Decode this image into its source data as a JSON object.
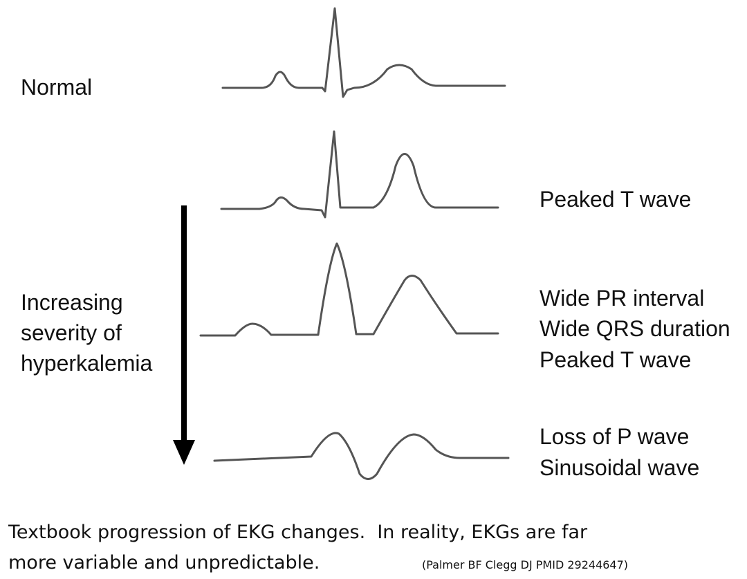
{
  "labels": {
    "normal": "Normal",
    "severity": [
      "Increasing",
      "severity of",
      "hyperkalemia"
    ]
  },
  "stages": [
    {
      "lines": [
        "Peaked T wave"
      ]
    },
    {
      "lines": [
        "Wide PR interval",
        "Wide QRS duration",
        "Peaked T wave"
      ]
    },
    {
      "lines": [
        "Loss of P wave",
        "Sinusoidal wave"
      ]
    }
  ],
  "caption": {
    "line1": "Textbook progression of EKG changes.  In reality, EKGs are far",
    "line2": "more variable and unpredictable.",
    "citation": "(Palmer BF Clegg DJ PMID 29244647)"
  }
}
